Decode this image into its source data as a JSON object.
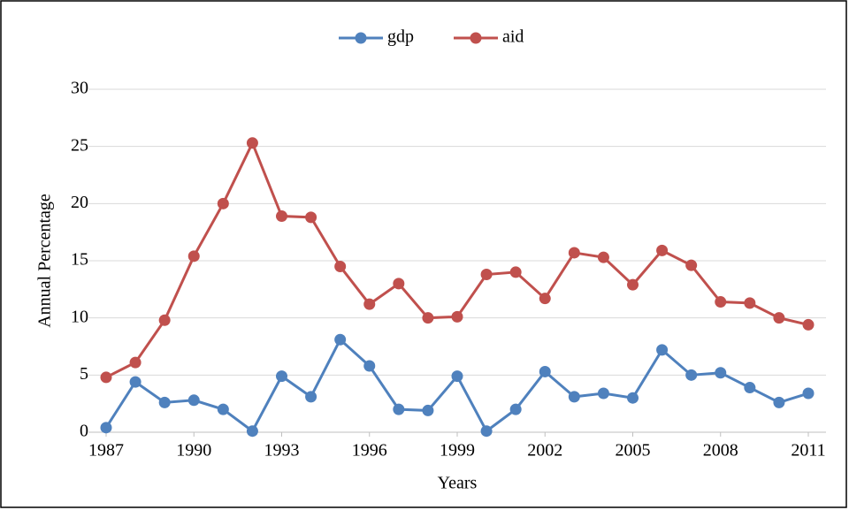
{
  "chart_data": {
    "type": "line",
    "x": [
      1987,
      1988,
      1989,
      1990,
      1991,
      1992,
      1993,
      1994,
      1995,
      1996,
      1997,
      1998,
      1999,
      2000,
      2001,
      2002,
      2003,
      2004,
      2005,
      2006,
      2007,
      2008,
      2009,
      2010,
      2011
    ],
    "series": [
      {
        "name": "gdp",
        "color": "#4f81bd",
        "values": [
          0.4,
          4.4,
          2.6,
          2.8,
          2.0,
          0.1,
          4.9,
          3.1,
          8.1,
          5.8,
          2.0,
          1.9,
          4.9,
          0.1,
          2.0,
          5.3,
          3.1,
          3.4,
          3.0,
          7.2,
          5.0,
          5.2,
          3.9,
          2.6,
          3.4
        ]
      },
      {
        "name": "aid",
        "color": "#c0504d",
        "values": [
          4.8,
          6.1,
          9.8,
          15.4,
          20.0,
          25.3,
          18.9,
          18.8,
          14.5,
          11.2,
          13.0,
          10.0,
          10.1,
          13.8,
          14.0,
          11.7,
          15.7,
          15.3,
          12.9,
          15.9,
          14.6,
          11.4,
          11.3,
          10.0,
          9.4
        ]
      }
    ],
    "xlabel": "Years",
    "ylabel": "Annual Percentage",
    "xlim": [
      1987,
      2011
    ],
    "xticks": [
      1987,
      1990,
      1993,
      1996,
      1999,
      2002,
      2005,
      2008,
      2011
    ],
    "ylim": [
      0,
      30
    ],
    "yticks": [
      0,
      5,
      10,
      15,
      20,
      25,
      30
    ],
    "grid": true,
    "legend": "top"
  }
}
